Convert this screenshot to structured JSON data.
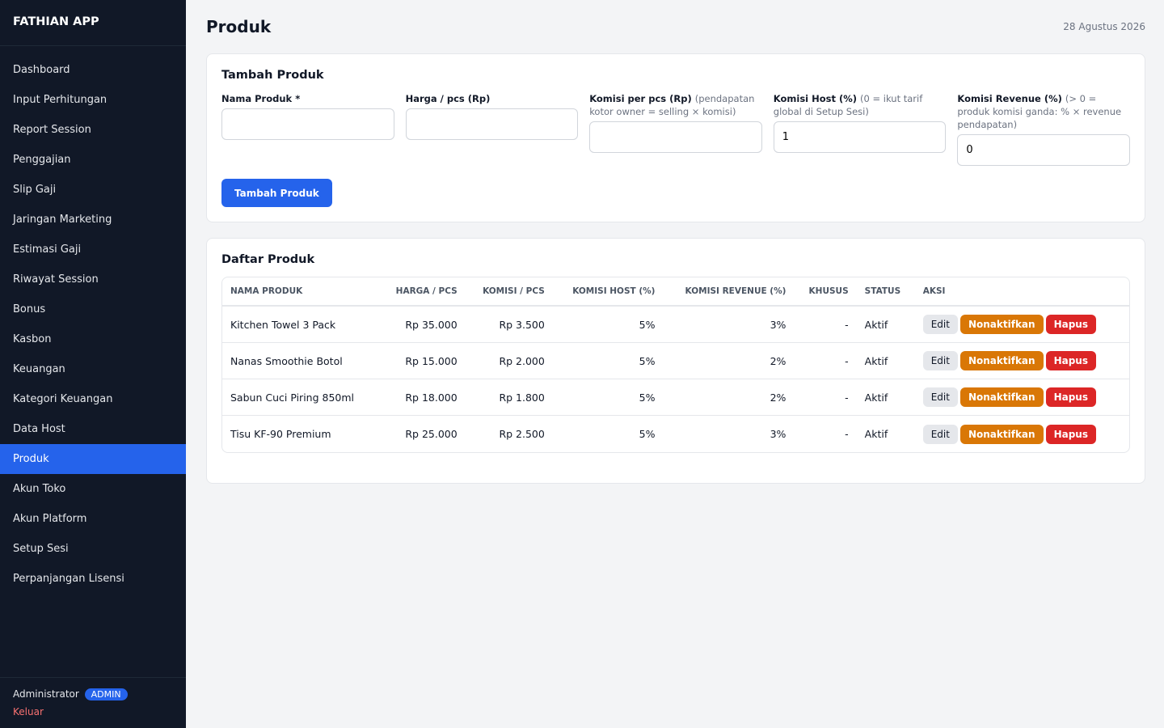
{
  "sidebar": {
    "brand": "FATHIAN APP",
    "menu": [
      "Dashboard",
      "Input Perhitungan",
      "Report Session",
      "Penggajian",
      "Slip Gaji",
      "Jaringan Marketing",
      "Estimasi Gaji",
      "Riwayat Session",
      "Bonus",
      "Kasbon",
      "Keuangan",
      "Kategori Keuangan",
      "Data Host",
      "Produk",
      "Akun Toko",
      "Akun Platform",
      "Setup Sesi",
      "Perpanjangan Lisensi"
    ],
    "active_index": 13,
    "user": {
      "name": "Administrator",
      "role": "ADMIN",
      "logout": "Keluar"
    }
  },
  "header": {
    "title": "Produk",
    "date": "28 Agustus 2026"
  },
  "form": {
    "title": "Tambah Produk",
    "fields": [
      {
        "label": "Nama Produk *"
      },
      {
        "label": "Harga / pcs (Rp)"
      },
      {
        "label": "Komisi per pcs (Rp)",
        "hint": "(pendapatan kotor owner = selling × komisi)"
      },
      {
        "label": "Komisi Host (%)",
        "hint": "(0 = ikut tarif global di Setup Sesi)",
        "value": "1"
      },
      {
        "label": "Komisi Revenue (%)",
        "hint": "(> 0 = produk komisi ganda: % × revenue pendapatan)",
        "value": "0"
      }
    ],
    "submit": "Tambah Produk"
  },
  "table": {
    "title": "Daftar Produk",
    "columns": [
      "NAMA PRODUK",
      "HARGA / PCS",
      "KOMISI / PCS",
      "KOMISI HOST (%)",
      "KOMISI REVENUE (%)",
      "KHUSUS",
      "STATUS",
      "AKSI"
    ],
    "rows": [
      [
        "Kitchen Towel 3 Pack",
        "Rp 35.000",
        "Rp 3.500",
        "5%",
        "3%",
        "-",
        "Aktif"
      ],
      [
        "Nanas Smoothie Botol",
        "Rp 15.000",
        "Rp 2.000",
        "5%",
        "2%",
        "-",
        "Aktif"
      ],
      [
        "Sabun Cuci Piring 850ml",
        "Rp 18.000",
        "Rp 1.800",
        "5%",
        "2%",
        "-",
        "Aktif"
      ],
      [
        "Tisu KF-90 Premium",
        "Rp 25.000",
        "Rp 2.500",
        "5%",
        "3%",
        "-",
        "Aktif"
      ]
    ],
    "actions": [
      "Edit",
      "Nonaktifkan",
      "Hapus"
    ]
  }
}
